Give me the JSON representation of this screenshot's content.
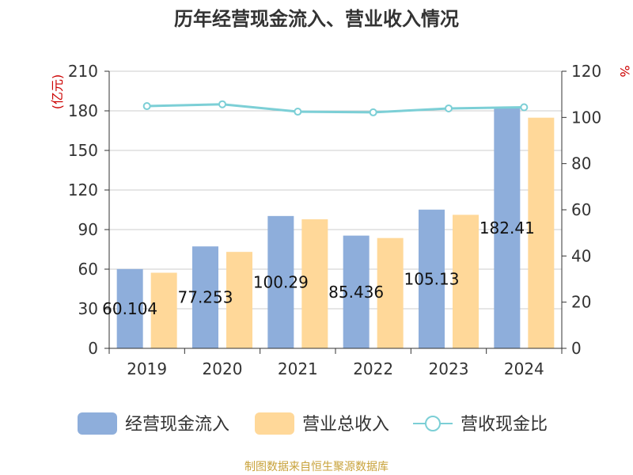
{
  "chart_data": {
    "type": "bar",
    "title": "历年经营现金流入、营业收入情况",
    "categories": [
      "2019",
      "2020",
      "2021",
      "2022",
      "2023",
      "2024"
    ],
    "series": [
      {
        "name": "经营现金流入",
        "kind": "bar",
        "axis": "left",
        "values": [
          60.104,
          77.253,
          100.29,
          85.436,
          105.13,
          182.41
        ],
        "labels": [
          "60.104",
          "77.253",
          "100.29",
          "85.436",
          "105.13",
          "182.41"
        ],
        "color": "#8eaedb"
      },
      {
        "name": "营业总收入",
        "kind": "bar",
        "axis": "left",
        "values": [
          57.3,
          73.1,
          97.8,
          83.6,
          101.2,
          174.8
        ],
        "color": "#ffd899"
      },
      {
        "name": "营收现金比",
        "kind": "line",
        "axis": "right",
        "values": [
          104.9,
          105.7,
          102.5,
          102.2,
          103.9,
          104.4
        ],
        "color": "#7ccfd6"
      }
    ],
    "y_left": {
      "label": "(亿元)",
      "min": 0,
      "max": 210,
      "ticks": [
        0,
        30,
        60,
        90,
        120,
        150,
        180,
        210
      ]
    },
    "y_right": {
      "label": "%",
      "min": 0,
      "max": 120,
      "ticks": [
        0,
        20,
        40,
        60,
        80,
        100,
        120
      ]
    },
    "grid": true,
    "legend_position": "bottom"
  },
  "footer": {
    "source": "制图数据来自恒生聚源数据库"
  }
}
